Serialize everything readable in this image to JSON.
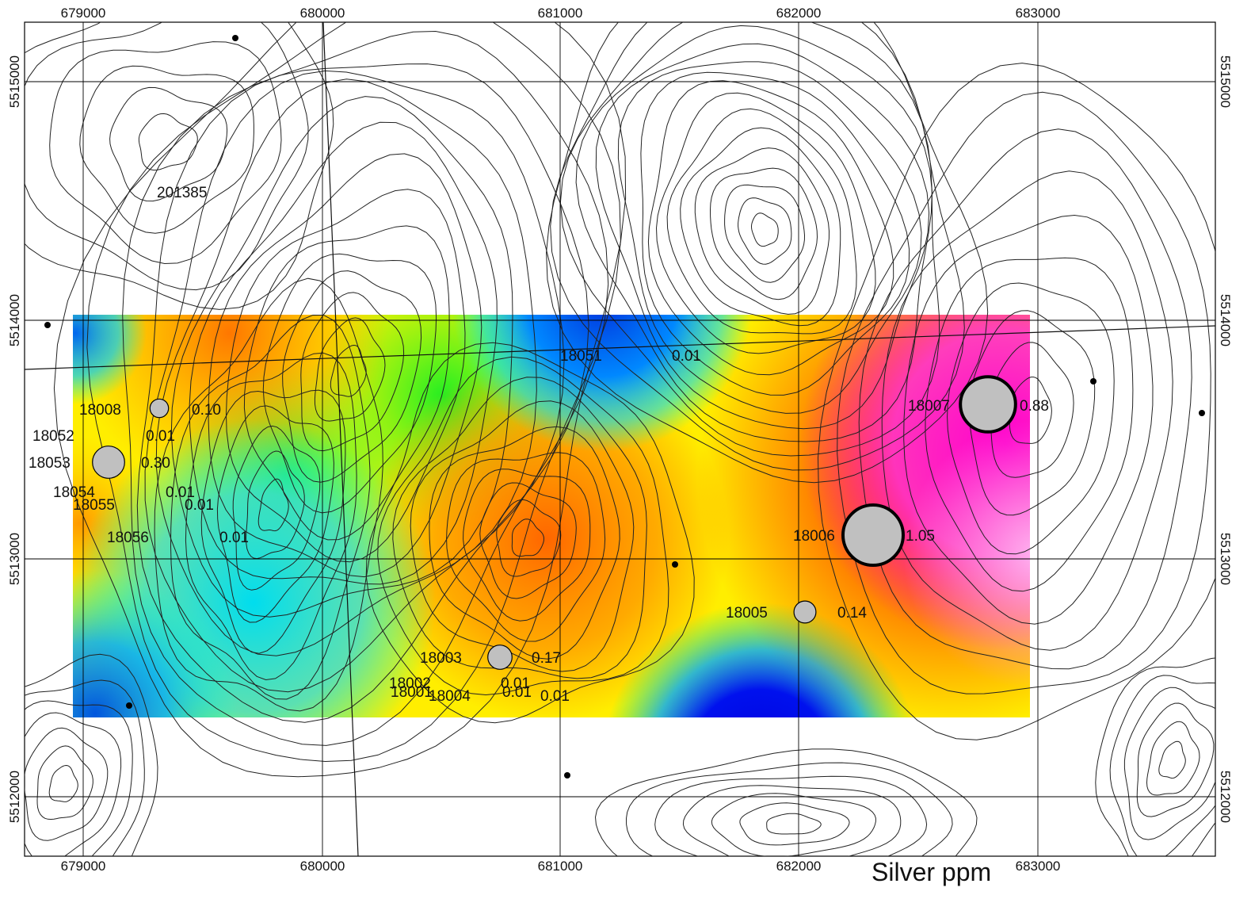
{
  "map": {
    "title": "Silver ppm",
    "easting_ticks": [
      "679000",
      "680000",
      "681000",
      "682000",
      "683000"
    ],
    "northing_ticks": [
      "5515000",
      "5514000",
      "5513000",
      "5512000"
    ],
    "colors": {
      "frame": "#000000",
      "grid": "#000000",
      "contour": "#222222",
      "sample_fill": "#c0c0c0",
      "sample_stroke": "#000000"
    },
    "samples": [
      {
        "id": "18008",
        "value": "0.10"
      },
      {
        "id": "18052",
        "value": "0.01"
      },
      {
        "id": "18053",
        "value": "0.30"
      },
      {
        "id": "18054",
        "value": "0.01"
      },
      {
        "id": "18055",
        "value": "0.01"
      },
      {
        "id": "18056",
        "value": "0.01"
      },
      {
        "id": "18051",
        "value": "0.01"
      },
      {
        "id": "18007",
        "value": "0.88"
      },
      {
        "id": "18006",
        "value": "1.05"
      },
      {
        "id": "18005",
        "value": "0.14"
      },
      {
        "id": "18003",
        "value": "0.17"
      },
      {
        "id": "18002",
        "value": "0.01"
      },
      {
        "id": "18001",
        "value": "0.01"
      },
      {
        "id": "18004",
        "value": "0.01"
      }
    ],
    "other_labels": [
      "201385"
    ]
  }
}
